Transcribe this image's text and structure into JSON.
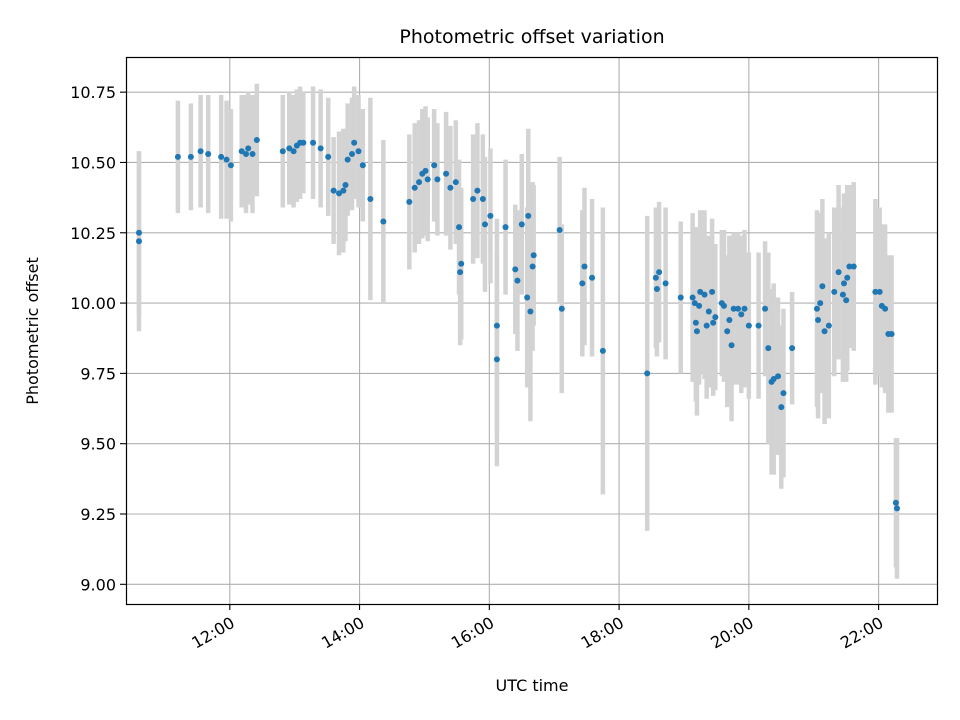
{
  "chart_data": {
    "type": "scatter",
    "title": "Photometric offset variation",
    "xlabel": "UTC time",
    "ylabel": "Photometric offset",
    "x_unit": "hours UTC",
    "xlim": [
      "10:24",
      "22:54"
    ],
    "ylim": [
      8.93,
      10.875
    ],
    "x_ticks": [
      "12:00",
      "14:00",
      "16:00",
      "18:00",
      "20:00",
      "22:00"
    ],
    "y_ticks": [
      "9.00",
      "9.25",
      "9.50",
      "9.75",
      "10.00",
      "10.25",
      "10.50",
      "10.75"
    ],
    "grid": true,
    "colors": {
      "point": "#1f77b4",
      "errorbar": "#d3d3d3",
      "grid": "#b0b0b0"
    },
    "series": [
      {
        "points": [
          [
            "10:36",
            10.25,
            0.29
          ],
          [
            "10:36",
            10.22,
            0.32
          ],
          [
            "11:12",
            10.52,
            0.2
          ],
          [
            "11:24",
            10.52,
            0.19
          ],
          [
            "11:33",
            10.54,
            0.2
          ],
          [
            "11:40",
            10.53,
            0.21
          ],
          [
            "11:52",
            10.52,
            0.22
          ],
          [
            "11:57",
            10.51,
            0.21
          ],
          [
            "12:01",
            10.49,
            0.2
          ],
          [
            "12:11",
            10.54,
            0.2
          ],
          [
            "12:15",
            10.53,
            0.21
          ],
          [
            "12:17",
            10.55,
            0.2
          ],
          [
            "12:21",
            10.53,
            0.21
          ],
          [
            "12:25",
            10.58,
            0.2
          ],
          [
            "12:49",
            10.54,
            0.2
          ],
          [
            "12:55",
            10.55,
            0.2
          ],
          [
            "12:59",
            10.54,
            0.2
          ],
          [
            "13:02",
            10.56,
            0.2
          ],
          [
            "13:05",
            10.57,
            0.2
          ],
          [
            "13:08",
            10.57,
            0.18
          ],
          [
            "13:17",
            10.57,
            0.2
          ],
          [
            "13:24",
            10.55,
            0.21
          ],
          [
            "13:31",
            10.52,
            0.21
          ],
          [
            "13:36",
            10.4,
            0.19
          ],
          [
            "13:41",
            10.39,
            0.22
          ],
          [
            "13:45",
            10.4,
            0.22
          ],
          [
            "13:47",
            10.42,
            0.2
          ],
          [
            "13:49",
            10.51,
            0.2
          ],
          [
            "13:53",
            10.53,
            0.2
          ],
          [
            "13:55",
            10.57,
            0.2
          ],
          [
            "13:59",
            10.54,
            0.2
          ],
          [
            "14:03",
            10.49,
            0.2
          ],
          [
            "14:10",
            10.37,
            0.36
          ],
          [
            "14:22",
            10.29,
            0.29
          ],
          [
            "14:46",
            10.36,
            0.24
          ],
          [
            "14:51",
            10.41,
            0.23
          ],
          [
            "14:55",
            10.43,
            0.22
          ],
          [
            "14:58",
            10.46,
            0.23
          ],
          [
            "15:01",
            10.47,
            0.23
          ],
          [
            "15:03",
            10.44,
            0.22
          ],
          [
            "15:09",
            10.49,
            0.2
          ],
          [
            "15:12",
            10.44,
            0.2
          ],
          [
            "15:20",
            10.46,
            0.22
          ],
          [
            "15:24",
            10.41,
            0.22
          ],
          [
            "15:29",
            10.43,
            0.22
          ],
          [
            "15:32",
            10.27,
            0.24
          ],
          [
            "15:33",
            10.11,
            0.26
          ],
          [
            "15:34",
            10.14,
            0.27
          ],
          [
            "15:45",
            10.37,
            0.23
          ],
          [
            "15:49",
            10.4,
            0.24
          ],
          [
            "15:54",
            10.37,
            0.23
          ],
          [
            "15:56",
            10.28,
            0.24
          ],
          [
            "16:01",
            10.31,
            0.24
          ],
          [
            "16:07",
            9.92,
            0.38
          ],
          [
            "16:07",
            9.8,
            0.38
          ],
          [
            "16:15",
            10.27,
            0.24
          ],
          [
            "16:24",
            10.12,
            0.23
          ],
          [
            "16:26",
            10.08,
            0.25
          ],
          [
            "16:30",
            10.28,
            0.25
          ],
          [
            "16:35",
            10.02,
            0.32
          ],
          [
            "16:36",
            10.31,
            0.31
          ],
          [
            "16:38",
            9.97,
            0.39
          ],
          [
            "16:40",
            10.13,
            0.3
          ],
          [
            "16:41",
            10.17,
            0.25
          ],
          [
            "17:05",
            10.26,
            0.26
          ],
          [
            "17:07",
            9.98,
            0.3
          ],
          [
            "17:26",
            10.07,
            0.26
          ],
          [
            "17:28",
            10.13,
            0.28
          ],
          [
            "17:35",
            10.09,
            0.28
          ],
          [
            "17:45",
            9.83,
            0.51
          ],
          [
            "18:26",
            9.75,
            0.56
          ],
          [
            "18:34",
            10.09,
            0.25
          ],
          [
            "18:35",
            10.05,
            0.24
          ],
          [
            "18:37",
            10.11,
            0.25
          ],
          [
            "18:43",
            10.07,
            0.27
          ],
          [
            "18:57",
            10.02,
            0.27
          ],
          [
            "19:08",
            10.02,
            0.3
          ],
          [
            "19:10",
            10.0,
            0.27
          ],
          [
            "19:11",
            9.93,
            0.28
          ],
          [
            "19:12",
            9.9,
            0.3
          ],
          [
            "19:14",
            9.99,
            0.28
          ],
          [
            "19:15",
            10.04,
            0.29
          ],
          [
            "19:19",
            10.03,
            0.3
          ],
          [
            "19:21",
            9.92,
            0.26
          ],
          [
            "19:23",
            9.97,
            0.27
          ],
          [
            "19:26",
            10.04,
            0.26
          ],
          [
            "19:27",
            9.93,
            0.26
          ],
          [
            "19:29",
            9.95,
            0.26
          ],
          [
            "19:35",
            10.0,
            0.26
          ],
          [
            "19:37",
            9.99,
            0.27
          ],
          [
            "19:40",
            9.9,
            0.27
          ],
          [
            "19:42",
            9.94,
            0.3
          ],
          [
            "19:44",
            9.85,
            0.27
          ],
          [
            "19:46",
            9.98,
            0.27
          ],
          [
            "19:50",
            9.98,
            0.27
          ],
          [
            "19:53",
            9.96,
            0.28
          ],
          [
            "19:56",
            9.98,
            0.28
          ],
          [
            "20:00",
            9.92,
            0.26
          ],
          [
            "20:09",
            9.92,
            0.26
          ],
          [
            "20:15",
            9.98,
            0.24
          ],
          [
            "20:18",
            9.84,
            0.34
          ],
          [
            "20:21",
            9.72,
            0.33
          ],
          [
            "20:23",
            9.73,
            0.34
          ],
          [
            "20:27",
            9.74,
            0.28
          ],
          [
            "20:30",
            9.63,
            0.29
          ],
          [
            "20:32",
            9.68,
            0.3
          ],
          [
            "20:40",
            9.84,
            0.2
          ],
          [
            "21:03",
            9.98,
            0.35
          ],
          [
            "21:04",
            9.94,
            0.35
          ],
          [
            "21:06",
            10.0,
            0.32
          ],
          [
            "21:08",
            10.06,
            0.31
          ],
          [
            "21:10",
            9.9,
            0.33
          ],
          [
            "21:14",
            9.92,
            0.33
          ],
          [
            "21:19",
            10.04,
            0.3
          ],
          [
            "21:23",
            10.11,
            0.31
          ],
          [
            "21:27",
            10.03,
            0.31
          ],
          [
            "21:28",
            10.07,
            0.32
          ],
          [
            "21:30",
            10.01,
            0.29
          ],
          [
            "21:31",
            10.09,
            0.33
          ],
          [
            "21:33",
            10.13,
            0.29
          ],
          [
            "21:37",
            10.13,
            0.3
          ],
          [
            "21:57",
            10.04,
            0.33
          ],
          [
            "22:01",
            10.04,
            0.3
          ],
          [
            "22:03",
            9.99,
            0.29
          ],
          [
            "22:06",
            9.98,
            0.3
          ],
          [
            "22:09",
            9.89,
            0.28
          ],
          [
            "22:12",
            9.89,
            0.28
          ],
          [
            "22:16",
            9.29,
            0.23
          ],
          [
            "22:17",
            9.27,
            0.25
          ]
        ]
      }
    ]
  }
}
